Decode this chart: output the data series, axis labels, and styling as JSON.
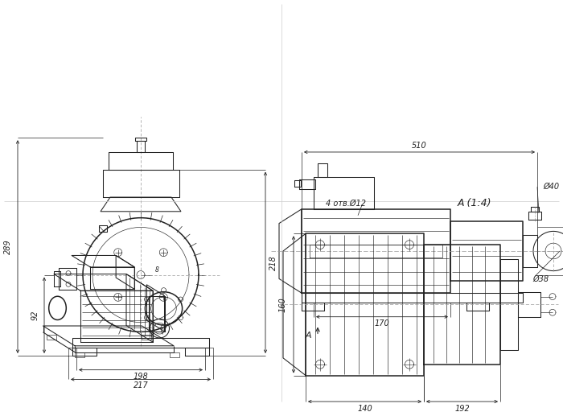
{
  "bg_color": "#ffffff",
  "line_color": "#222222",
  "dim_color": "#222222",
  "dash_color": "#999999",
  "dims": {
    "front_289": "289",
    "front_218": "218",
    "front_92": "92",
    "front_198": "198",
    "front_217": "217",
    "front_8": "8",
    "side_510": "510",
    "side_170": "170",
    "side_d40": "Ø40",
    "side_d38": "Ø38",
    "bottom_160": "160",
    "bottom_140": "140",
    "bottom_192": "192",
    "bottom_holes": "4 отв.Ø12",
    "section": "A (1:4)"
  }
}
